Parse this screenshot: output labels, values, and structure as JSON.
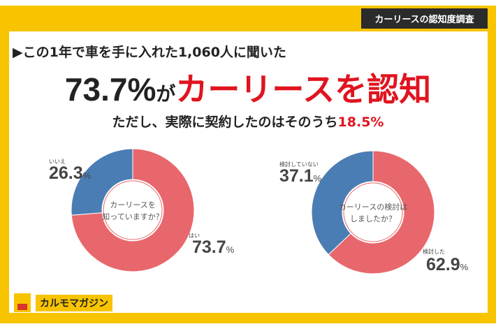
{
  "tag": "カーリースの認知度調査",
  "lead": "▶この1年で車を手に入れた1,060人に聞いた",
  "headline": {
    "number": "73.7%",
    "particle": "が",
    "emphasis": "カーリースを認知"
  },
  "sub": {
    "text": "ただし、実際に契約したのはそのうち",
    "highlight": "18.5%"
  },
  "colors": {
    "positive": "#e8676c",
    "negative": "#4a7db4",
    "accent": "#e0141f",
    "frame": "#f8c400"
  },
  "chart_data": [
    {
      "type": "pie",
      "title": "カーリースを知っていますか？",
      "title_lines": [
        "カーリースを",
        "知っていますか？"
      ],
      "slices": [
        {
          "label": "はい",
          "value": 73.7,
          "display": "73.7"
        },
        {
          "label": "いいえ",
          "value": 26.3,
          "display": "26.3"
        }
      ],
      "unit": "%"
    },
    {
      "type": "pie",
      "title": "カーリースの検討はしましたか？",
      "title_lines": [
        "カーリースの検討は",
        "しましたか？"
      ],
      "slices": [
        {
          "label": "検討した",
          "value": 62.9,
          "display": "62.9"
        },
        {
          "label": "検討していない",
          "value": 37.1,
          "display": "37.1"
        }
      ],
      "unit": "%"
    }
  ],
  "logo": {
    "text": "カルモマガジン"
  }
}
